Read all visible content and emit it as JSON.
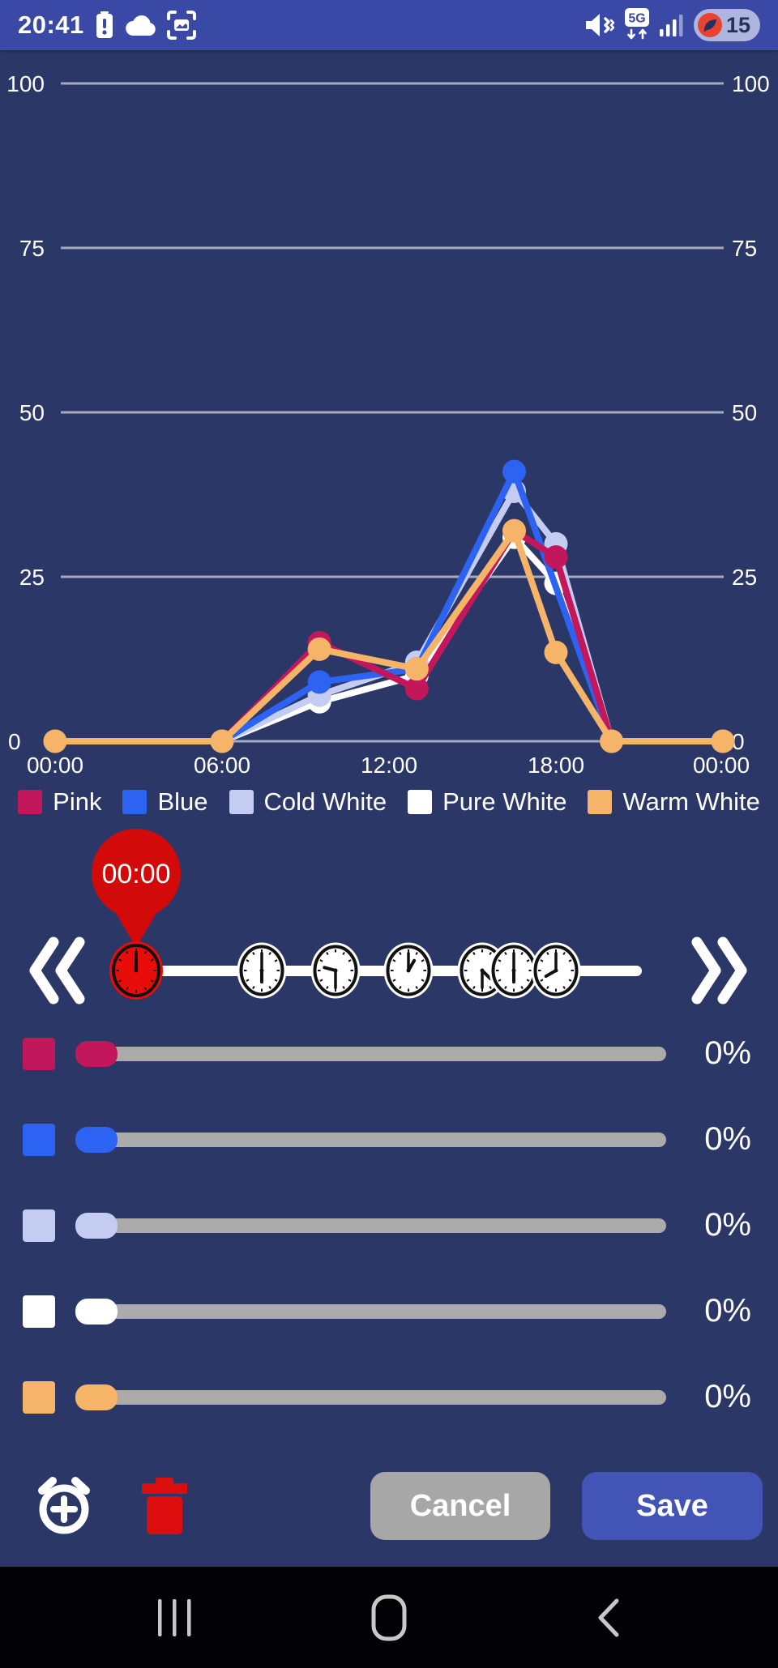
{
  "status_bar": {
    "time": "20:41",
    "left_icons": [
      "battery-alert",
      "cloud",
      "screenshot"
    ],
    "right_icons": [
      "mute-vibrate",
      "network-5g",
      "signal-strength",
      "battery-saver-pill"
    ],
    "network_badge": "5G",
    "battery_percent": "15"
  },
  "colors": {
    "background": "#2B3766",
    "status_bar": "#3A49A5",
    "accent_red": "#D20A0A",
    "clock_red": "#EA0B0B",
    "slider_track": "#ABABAB",
    "time_track": "#FFFFFF",
    "cancel_button": "#A7A7A7",
    "save_button": "#4254B6",
    "nav_background": "#020204",
    "nav_icons": "#C8C8C8",
    "grid_line": "#A5ABBE",
    "trash_red": "#DB0D0D"
  },
  "chart_data": {
    "type": "line",
    "title": "",
    "xlabel": "",
    "ylabel": "",
    "ylim": [
      0,
      100
    ],
    "xlim_hours": [
      0,
      24
    ],
    "grid": true,
    "y_ticks": [
      0,
      25,
      50,
      75,
      100
    ],
    "y_axis_sides": [
      "left",
      "right"
    ],
    "x_tick_hours": [
      0,
      6,
      12,
      18,
      24
    ],
    "x_ticks": [
      "00:00",
      "06:00",
      "12:00",
      "18:00",
      "00:00"
    ],
    "legend_position": "bottom",
    "series": [
      {
        "name": "Pink",
        "color": "#C2185B",
        "points": [
          [
            0,
            0
          ],
          [
            6,
            0
          ],
          [
            9.5,
            15
          ],
          [
            13,
            8
          ],
          [
            16.5,
            32
          ],
          [
            18,
            28
          ],
          [
            20,
            0
          ],
          [
            24,
            0
          ]
        ]
      },
      {
        "name": "Blue",
        "color": "#2D63F2",
        "points": [
          [
            0,
            0
          ],
          [
            6,
            0
          ],
          [
            9.5,
            9
          ],
          [
            13,
            11
          ],
          [
            16.5,
            41
          ],
          [
            20,
            0
          ],
          [
            24,
            0
          ]
        ]
      },
      {
        "name": "Cold White",
        "color": "#C5CCF2",
        "points": [
          [
            0,
            0
          ],
          [
            6,
            0
          ],
          [
            9.5,
            7
          ],
          [
            13,
            12
          ],
          [
            16.5,
            38
          ],
          [
            18,
            30
          ],
          [
            20,
            0
          ],
          [
            24,
            0
          ]
        ]
      },
      {
        "name": "Pure White",
        "color": "#FFFFFF",
        "points": [
          [
            0,
            0
          ],
          [
            6,
            0
          ],
          [
            9.5,
            6
          ],
          [
            13,
            10
          ],
          [
            16.5,
            31
          ],
          [
            18,
            24
          ],
          [
            20,
            0
          ],
          [
            24,
            0
          ]
        ]
      },
      {
        "name": "Warm White",
        "color": "#F6B468",
        "points": [
          [
            0,
            0
          ],
          [
            6,
            0
          ],
          [
            9.5,
            14
          ],
          [
            13,
            11
          ],
          [
            16.5,
            32
          ],
          [
            18,
            13.5
          ],
          [
            20,
            0
          ],
          [
            24,
            0
          ]
        ]
      }
    ],
    "draw_order": [
      "Pure White",
      "Cold White",
      "Blue",
      "Pink",
      "Warm White"
    ]
  },
  "time_slider": {
    "selected_time": "00:00",
    "selected_index": 0,
    "times": [
      "00:00",
      "06:00",
      "09:30",
      "13:00",
      "16:30",
      "18:00",
      "20:00"
    ],
    "prev_icon": "double-chevron-left",
    "next_icon": "double-chevron-right"
  },
  "channel_sliders": [
    {
      "name": "Pink",
      "color": "#C2185B",
      "value_label": "0%"
    },
    {
      "name": "Blue",
      "color": "#2D63F2",
      "value_label": "0%"
    },
    {
      "name": "Cold White",
      "color": "#C5CCF2",
      "value_label": "0%"
    },
    {
      "name": "Pure White",
      "color": "#FFFFFF",
      "value_label": "0%"
    },
    {
      "name": "Warm White",
      "color": "#F6B468",
      "value_label": "0%"
    }
  ],
  "actions": {
    "add_time_icon": "alarm-plus",
    "delete_icon": "trash",
    "cancel_label": "Cancel",
    "save_label": "Save"
  },
  "nav_bar": {
    "buttons": [
      "recents",
      "home",
      "back"
    ]
  }
}
